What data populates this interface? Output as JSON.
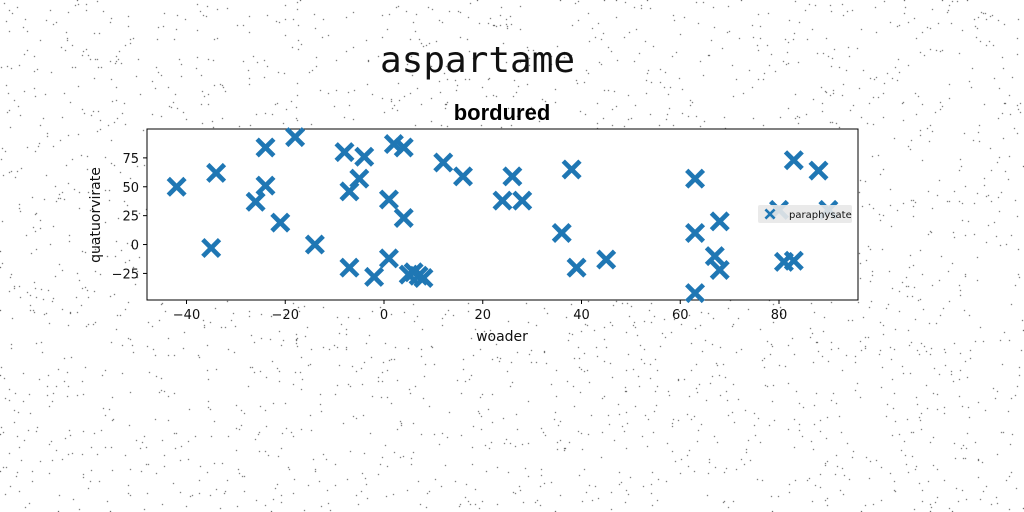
{
  "suptitle": "aspartame",
  "chart_data": {
    "type": "scatter",
    "title": "bordured",
    "xlabel": "woader",
    "ylabel": "quatuorvirate",
    "xlim": [
      -48,
      96
    ],
    "ylim": [
      -48,
      100
    ],
    "xticks": [
      -40,
      -20,
      0,
      20,
      40,
      60,
      80
    ],
    "yticks": [
      -25,
      0,
      25,
      50,
      75
    ],
    "grid": false,
    "legend_position": "right",
    "marker": "X",
    "series": [
      {
        "name": "paraphysate",
        "color": "#1f77b4",
        "points": [
          [
            -42,
            50
          ],
          [
            -34,
            62
          ],
          [
            -35,
            -3
          ],
          [
            -26,
            37
          ],
          [
            -24,
            84
          ],
          [
            -24,
            51
          ],
          [
            -21,
            19
          ],
          [
            -18,
            93
          ],
          [
            -14,
            0
          ],
          [
            -8,
            80
          ],
          [
            -7,
            46
          ],
          [
            -7,
            -20
          ],
          [
            -5,
            57
          ],
          [
            -4,
            76
          ],
          [
            -2,
            -28
          ],
          [
            1,
            39
          ],
          [
            1,
            -12
          ],
          [
            2,
            87
          ],
          [
            4,
            84
          ],
          [
            4,
            23
          ],
          [
            5,
            -26
          ],
          [
            6,
            -24
          ],
          [
            7,
            -27
          ],
          [
            8,
            -29
          ],
          [
            12,
            71
          ],
          [
            16,
            59
          ],
          [
            24,
            38
          ],
          [
            26,
            59
          ],
          [
            28,
            38
          ],
          [
            36,
            10
          ],
          [
            38,
            65
          ],
          [
            39,
            -20
          ],
          [
            45,
            -13
          ],
          [
            63,
            57
          ],
          [
            63,
            10
          ],
          [
            63,
            -42
          ],
          [
            67,
            -10
          ],
          [
            68,
            20
          ],
          [
            68,
            -22
          ],
          [
            80,
            30
          ],
          [
            81,
            -15
          ],
          [
            83,
            73
          ],
          [
            83,
            -14
          ],
          [
            88,
            64
          ],
          [
            90,
            30
          ]
        ]
      }
    ]
  }
}
